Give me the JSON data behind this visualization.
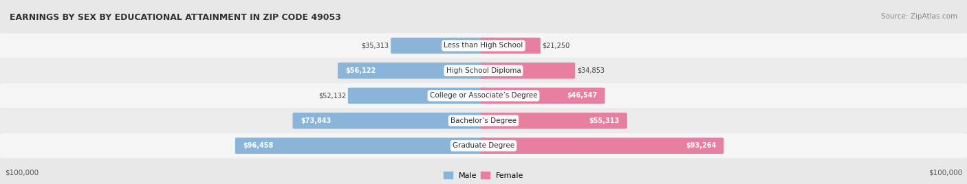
{
  "title": "EARNINGS BY SEX BY EDUCATIONAL ATTAINMENT IN ZIP CODE 49053",
  "source": "Source: ZipAtlas.com",
  "categories": [
    "Less than High School",
    "High School Diploma",
    "College or Associate’s Degree",
    "Bachelor’s Degree",
    "Graduate Degree"
  ],
  "male_values": [
    35313,
    56122,
    52132,
    73843,
    96458
  ],
  "female_values": [
    21250,
    34853,
    46547,
    55313,
    93264
  ],
  "max_value": 100000,
  "male_color": "#8ab4d8",
  "female_color": "#e87fa0",
  "bg_color": "#e8e8e8",
  "row_colors": [
    "#f5f5f5",
    "#ebebeb"
  ],
  "axis_label_left": "$100,000",
  "axis_label_right": "$100,000",
  "legend_male": "Male",
  "legend_female": "Female",
  "male_inside_threshold": 55000,
  "female_inside_threshold": 40000
}
